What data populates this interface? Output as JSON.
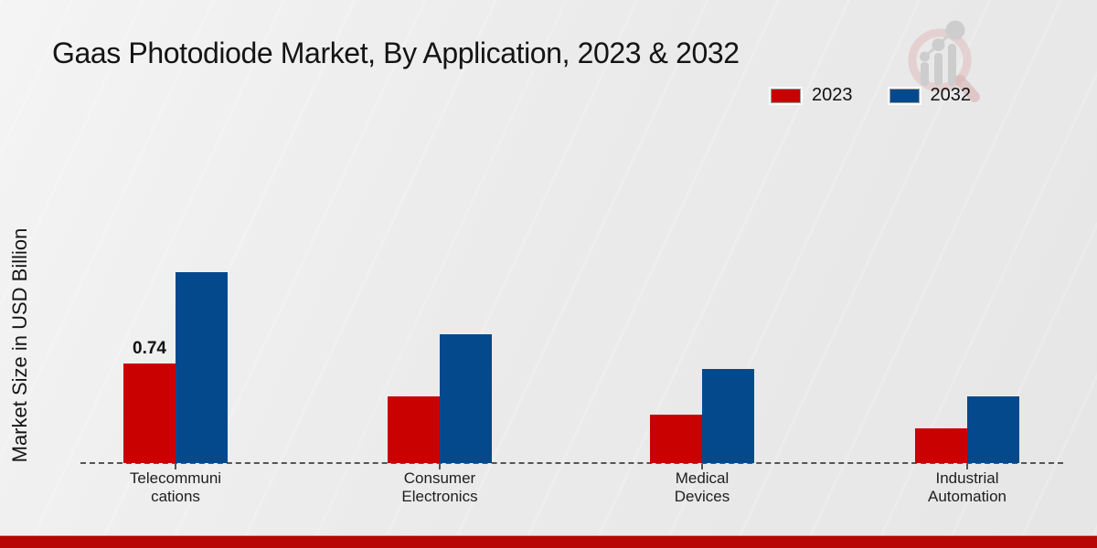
{
  "page": {
    "title": "Gaas Photodiode Market, By Application, 2023 & 2032",
    "ylabel": "Market Size in USD Billion"
  },
  "legend": {
    "items": [
      {
        "label": "2023",
        "color": "#c90101"
      },
      {
        "label": "2032",
        "color": "#04498c"
      }
    ]
  },
  "watermark": {
    "icon": "market-research-magnifier-logo"
  },
  "colors": {
    "series_2023": "#c90101",
    "series_2032": "#04498c",
    "baseline": "#555555",
    "bottom_strip": "#b80505",
    "background": "#ebebeb"
  },
  "chart_data": {
    "type": "bar",
    "title": "Gaas Photodiode Market, By Application, 2023 & 2032",
    "xlabel": "",
    "ylabel": "Market Size in USD Billion",
    "categories": [
      "Telecommunications",
      "Consumer Electronics",
      "Medical Devices",
      "Industrial Automation"
    ],
    "tick_labels": [
      "Telecommuni\ncations",
      "Consumer\nElectronics",
      "Medical\nDevices",
      "Industrial\nAutomation"
    ],
    "series": [
      {
        "name": "2023",
        "color": "#c90101",
        "values": [
          0.74,
          0.5,
          0.36,
          0.26
        ]
      },
      {
        "name": "2032",
        "color": "#04498c",
        "values": [
          1.42,
          0.96,
          0.7,
          0.5
        ]
      }
    ],
    "ylim": [
      0,
      1.6
    ],
    "grid": false,
    "axis_style": "dashed-baseline-only",
    "legend_position": "top-right",
    "annotations": [
      {
        "series": "2023",
        "category": "Telecommunications",
        "text": "0.74"
      }
    ]
  }
}
